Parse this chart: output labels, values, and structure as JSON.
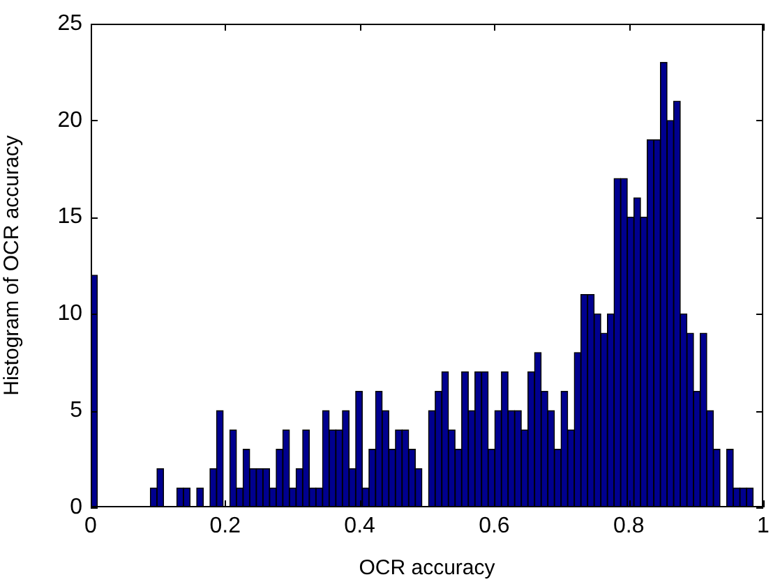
{
  "chart_data": {
    "type": "histogram",
    "xlabel": "OCR accuracy",
    "ylabel": "Histogram of OCR accuracy",
    "color": "#00008f",
    "bins": [
      0,
      0.00985,
      0.0197,
      0.02955,
      0.0394,
      0.04925,
      0.0591,
      0.06895,
      0.0788,
      0.08865,
      0.0985,
      0.10835,
      0.1182,
      0.12805,
      0.1379,
      0.14775,
      0.1576,
      0.16745,
      0.1773,
      0.18715,
      0.197,
      0.20685,
      0.2167,
      0.22655,
      0.2364,
      0.24625,
      0.2561,
      0.26595,
      0.2758,
      0.28565,
      0.2955,
      0.30535,
      0.3152,
      0.32505,
      0.3349,
      0.34475,
      0.3546,
      0.36445,
      0.3743,
      0.38415,
      0.394,
      0.40385,
      0.4137,
      0.42355,
      0.4334,
      0.44325,
      0.4531,
      0.46295,
      0.4728,
      0.48265,
      0.4925,
      0.50235,
      0.5122,
      0.52205,
      0.5319,
      0.54175,
      0.5516,
      0.56145,
      0.5713,
      0.58115,
      0.591,
      0.60085,
      0.6107,
      0.62055,
      0.6304,
      0.64025,
      0.6501,
      0.65995,
      0.6698,
      0.67965,
      0.6895,
      0.69935,
      0.7092,
      0.71905,
      0.7289,
      0.73875,
      0.7486,
      0.75845,
      0.7683,
      0.77815,
      0.788,
      0.79785,
      0.8077,
      0.81755,
      0.8274,
      0.83725,
      0.8471,
      0.85695,
      0.8668,
      0.87665,
      0.8865,
      0.89635,
      0.9062,
      0.91605,
      0.9259,
      0.93575,
      0.9456,
      0.95545,
      0.9653,
      0.97515,
      0.985
    ],
    "values": [
      12,
      0,
      0,
      0,
      0,
      0,
      0,
      0,
      0,
      1,
      2,
      0,
      0,
      1,
      1,
      0,
      1,
      0,
      2,
      5,
      0,
      4,
      1,
      3,
      2,
      2,
      2,
      1,
      3,
      4,
      1,
      2,
      4,
      1,
      1,
      5,
      4,
      4,
      5,
      2,
      6,
      1,
      3,
      6,
      5,
      3,
      4,
      4,
      3,
      2,
      0,
      5,
      6,
      7,
      4,
      3,
      7,
      5,
      7,
      7,
      3,
      5,
      7,
      5,
      5,
      4,
      7,
      8,
      6,
      5,
      3,
      6,
      4,
      8,
      11,
      11,
      10,
      9,
      10,
      17,
      17,
      15,
      16,
      15,
      19,
      19,
      23,
      20,
      21,
      10,
      9,
      6,
      9,
      5,
      3,
      0,
      3,
      1,
      1,
      1
    ],
    "xlim": [
      0,
      1
    ],
    "xticks": [
      0,
      0.2,
      0.4,
      0.6,
      0.8,
      1
    ],
    "ylim": [
      0,
      25
    ],
    "yticks": [
      0,
      5,
      10,
      15,
      20,
      25
    ]
  }
}
